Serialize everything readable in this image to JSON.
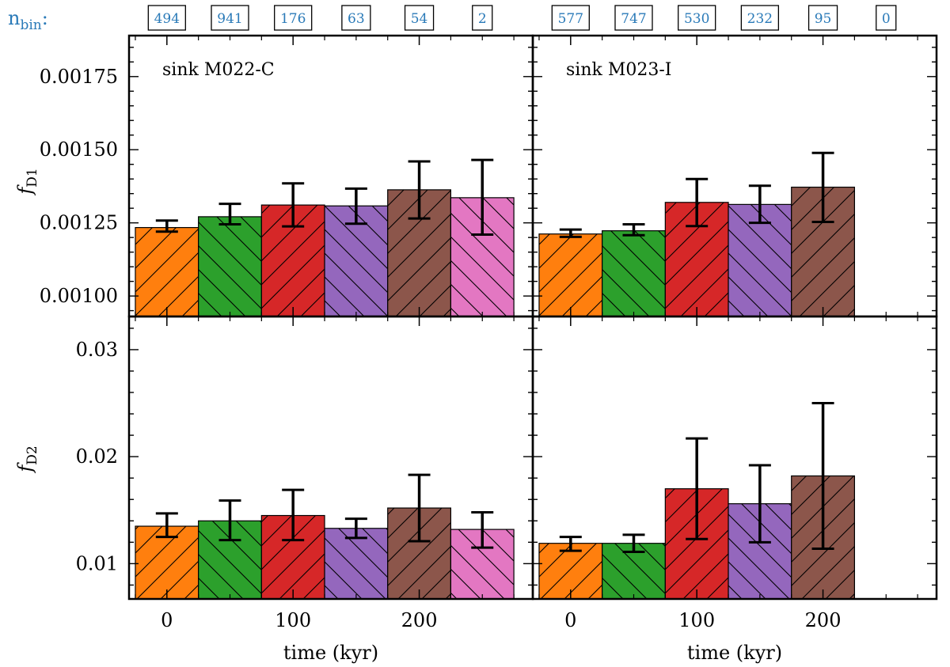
{
  "chart_data": {
    "type": "bar",
    "xlabel": "time (kyr)",
    "xticks": [
      "0",
      "100",
      "200"
    ],
    "xlim": [
      -30,
      290
    ],
    "bar_centers": [
      0,
      50,
      100,
      150,
      200,
      250
    ],
    "bar_width": 50,
    "nbin_label": "n",
    "nbin_sub": "bin",
    "nbin_colon": ":",
    "colors": [
      "#ff7f0e",
      "#2ca02c",
      "#d62728",
      "#9467bd",
      "#8c564b",
      "#e377c2"
    ],
    "hatch": [
      "/",
      "\\",
      "/",
      "\\",
      "/",
      "\\"
    ],
    "rows": [
      {
        "ylabel_main": "f",
        "ylabel_sub": "D1",
        "ylim": [
          0.00093,
          0.00189
        ],
        "yticks": [
          "0.00100",
          "0.00125",
          "0.00150",
          "0.00175"
        ],
        "ytick_values": [
          0.001,
          0.00125,
          0.0015,
          0.00175
        ]
      },
      {
        "ylabel_main": "f",
        "ylabel_sub": "D2",
        "ylim": [
          0.0067,
          0.0331
        ],
        "yticks": [
          "0.01",
          "0.02",
          "0.03"
        ],
        "ytick_values": [
          0.01,
          0.02,
          0.03
        ]
      }
    ],
    "columns": [
      {
        "title": "sink M022-C",
        "nbin": [
          "494",
          "941",
          "176",
          "63",
          "54",
          "2"
        ],
        "fD1": {
          "values": [
            0.001234,
            0.001271,
            0.001311,
            0.001308,
            0.001363,
            0.001336
          ],
          "err_low": [
            0.00122,
            0.001245,
            0.001238,
            0.001247,
            0.001265,
            0.00121
          ],
          "err_high": [
            0.001258,
            0.001315,
            0.001385,
            0.001367,
            0.00146,
            0.001465
          ]
        },
        "fD2": {
          "values": [
            0.0135,
            0.014,
            0.0145,
            0.0133,
            0.0152,
            0.0132
          ],
          "err_low": [
            0.0125,
            0.0122,
            0.0122,
            0.0124,
            0.0121,
            0.0115
          ],
          "err_high": [
            0.0147,
            0.0159,
            0.0169,
            0.0142,
            0.0183,
            0.0148
          ]
        }
      },
      {
        "title": "sink M023-I",
        "nbin": [
          "577",
          "747",
          "530",
          "232",
          "95",
          "0"
        ],
        "fD1": {
          "values": [
            0.001212,
            0.001223,
            0.00132,
            0.001313,
            0.001372,
            null
          ],
          "err_low": [
            0.001202,
            0.001208,
            0.001239,
            0.00125,
            0.001253,
            null
          ],
          "err_high": [
            0.001227,
            0.001245,
            0.0014,
            0.001377,
            0.001489,
            null
          ]
        },
        "fD2": {
          "values": [
            0.0119,
            0.0119,
            0.017,
            0.0156,
            0.0182,
            null
          ],
          "err_low": [
            0.0112,
            0.0111,
            0.0123,
            0.012,
            0.0114,
            null
          ],
          "err_high": [
            0.0125,
            0.0127,
            0.0217,
            0.0192,
            0.025,
            null
          ]
        }
      }
    ]
  }
}
